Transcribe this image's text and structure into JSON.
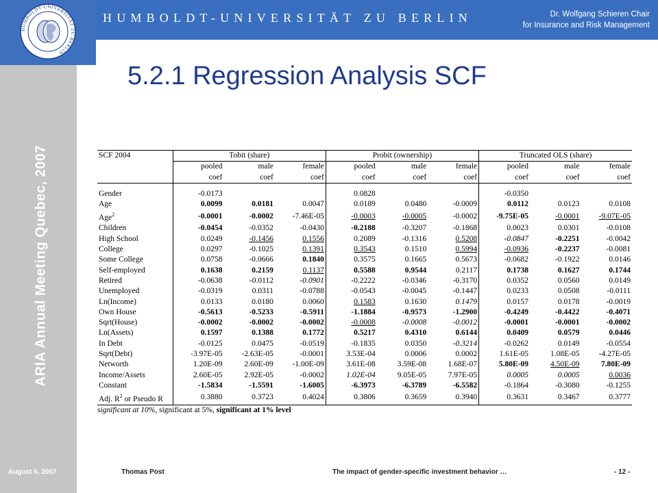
{
  "header": {
    "university": "HUMBOLDT-UNIVERSITÄT ZU BERLIN",
    "chair_line1": "Dr. Wolfgang Schieren Chair",
    "chair_line2": "for Insurance and Risk Management",
    "seal_text": "HUMBOLDT-UNIVERSITÄT ZU BERLIN"
  },
  "sidebar": {
    "conference": "ARIA Annual Meeting Quebec, 2007"
  },
  "slide": {
    "title": "5.2.1 Regression Analysis SCF"
  },
  "table": {
    "corner": "SCF 2004",
    "groups": [
      "Tobit (share)",
      "Probit (ownership)",
      "Truncated OLS (share)"
    ],
    "subheaders": [
      "pooled",
      "male",
      "female",
      "pooled",
      "male",
      "female",
      "pooled",
      "male",
      "female"
    ],
    "coef_label": "coef",
    "rows": [
      {
        "label": "Gender",
        "cells": [
          "-0.0173",
          "",
          "",
          "0.0828",
          "",
          "",
          "-0.0350",
          "",
          ""
        ],
        "styles": [
          "",
          "",
          "",
          "",
          "",
          "",
          "",
          "",
          ""
        ]
      },
      {
        "label": "Age",
        "cells": [
          "0.0099",
          "0.0181",
          "0.0047",
          "0.0189",
          "0.0480",
          "-0.0009",
          "0.0112",
          "0.0123",
          "0.0108"
        ],
        "styles": [
          "b",
          "b",
          "",
          "",
          "",
          "",
          "b",
          "",
          ""
        ]
      },
      {
        "label": "Age2",
        "cells": [
          "-0.0001",
          "-0.0002",
          "-7.46E-05",
          "-0.0003",
          "-0.0005",
          "-0.0002",
          "-9.75E-05",
          "-0.0001",
          "-9.07E-05"
        ],
        "styles": [
          "b",
          "b",
          "",
          "u",
          "u",
          "",
          "b",
          "u",
          "u"
        ]
      },
      {
        "label": "Children",
        "cells": [
          "-0.0454",
          "-0.0352",
          "-0.0430",
          "-0.2188",
          "-0.3207",
          "-0.1868",
          "0.0023",
          "0.0301",
          "-0.0108"
        ],
        "styles": [
          "b",
          "",
          "",
          "b",
          "",
          "",
          "",
          "",
          ""
        ]
      },
      {
        "label": "High School",
        "cells": [
          "0.0249",
          "-0.1456",
          "0.1556",
          "0.2089",
          "-0.1316",
          "0.5208",
          "-0.0847",
          "-0.2251",
          "-0.0042"
        ],
        "styles": [
          "",
          "u",
          "u",
          "",
          "",
          "u",
          "i",
          "b",
          ""
        ]
      },
      {
        "label": "College",
        "cells": [
          "0.0297",
          "-0.1025",
          "0.1391",
          "0.3543",
          "0.1510",
          "0.5994",
          "-0.0936",
          "-0.2237",
          "-0.0081"
        ],
        "styles": [
          "",
          "",
          "u",
          "u",
          "",
          "u",
          "u",
          "b",
          ""
        ]
      },
      {
        "label": "Some College",
        "cells": [
          "0.0758",
          "-0.0666",
          "0.1840",
          "0.3575",
          "0.1665",
          "0.5673",
          "-0.0682",
          "-0.1922",
          "0.0146"
        ],
        "styles": [
          "",
          "",
          "b",
          "",
          "",
          "",
          "",
          "",
          ""
        ]
      },
      {
        "label": "Self-employed",
        "cells": [
          "0.1638",
          "0.2159",
          "0.1137",
          "0.5588",
          "0.9544",
          "0.2117",
          "0.1738",
          "0.1627",
          "0.1744"
        ],
        "styles": [
          "b",
          "b",
          "u",
          "b",
          "b",
          "",
          "b",
          "b",
          "b"
        ]
      },
      {
        "label": "Retired",
        "cells": [
          "-0.0638",
          "-0.0112",
          "-0.0901",
          "-0.2222",
          "-0.0346",
          "-0.3170",
          "0.0352",
          "0.0560",
          "0.0149"
        ],
        "styles": [
          "",
          "",
          "i",
          "",
          "",
          "",
          "",
          "",
          ""
        ]
      },
      {
        "label": "Unemployed",
        "cells": [
          "-0.0319",
          "0.0311",
          "-0.0788",
          "-0.0543",
          "-0.0045",
          "-0.1447",
          "0.0233",
          "0.0508",
          "-0.0111"
        ],
        "styles": [
          "",
          "",
          "",
          "",
          "",
          "",
          "",
          "",
          ""
        ]
      },
      {
        "label": "Ln(Income)",
        "cells": [
          "0.0133",
          "0.0180",
          "0.0060",
          "0.1583",
          "0.1630",
          "0.1479",
          "0.0157",
          "0.0178",
          "-0.0019"
        ],
        "styles": [
          "",
          "",
          "",
          "u",
          "",
          "i",
          "",
          "",
          ""
        ]
      },
      {
        "label": "Own House",
        "cells": [
          "-0.5613",
          "-0.5233",
          "-0.5911",
          "-1.1884",
          "-0.9573",
          "-1.2900",
          "-0.4249",
          "-0.4422",
          "-0.4071"
        ],
        "styles": [
          "b",
          "b",
          "b",
          "b",
          "b",
          "b",
          "b",
          "b",
          "b"
        ]
      },
      {
        "label": "Sqrt(House)",
        "cells": [
          "-0.0002",
          "-0.0002",
          "-0.0002",
          "-0.0008",
          "-0.0008",
          "-0.0012",
          "-0.0001",
          "-0.0001",
          "-0.0002"
        ],
        "styles": [
          "b",
          "b",
          "b",
          "u",
          "i",
          "i",
          "b",
          "b",
          "b"
        ]
      },
      {
        "label": "Ln(Assets)",
        "cells": [
          "0.1597",
          "0.1388",
          "0.1772",
          "0.5217",
          "0.4310",
          "0.6144",
          "0.0409",
          "0.0579",
          "0.0446"
        ],
        "styles": [
          "b",
          "b",
          "b",
          "b",
          "b",
          "b",
          "b",
          "b",
          "b"
        ]
      },
      {
        "label": "In Debt",
        "cells": [
          "-0.0125",
          "0.0475",
          "-0.0519",
          "-0.1835",
          "0.0350",
          "-0.3214",
          "-0.0262",
          "0.0149",
          "-0.0554"
        ],
        "styles": [
          "",
          "",
          "",
          "",
          "",
          "i",
          "",
          "",
          ""
        ]
      },
      {
        "label": "Sqrt(Debt)",
        "cells": [
          "-3.97E-05",
          "-2.63E-05",
          "-0.0001",
          "3.53E-04",
          "0.0006",
          "0.0002",
          "1.61E-05",
          "1.08E-05",
          "-4.27E-05"
        ],
        "styles": [
          "",
          "",
          "",
          "",
          "",
          "",
          "",
          "",
          ""
        ]
      },
      {
        "label": "Networth",
        "cells": [
          "1.20E-09",
          "2.60E-09",
          "-1.00E-09",
          "3.61E-08",
          "3.59E-08",
          "1.68E-07",
          "5.80E-09",
          "4.50E-09",
          "7.80E-09"
        ],
        "styles": [
          "",
          "",
          "",
          "",
          "",
          "",
          "b",
          "u",
          "b"
        ]
      },
      {
        "label": "Income/Assets",
        "cells": [
          "2.60E-05",
          "2.92E-05",
          "-0.0002",
          "1.02E-04",
          "9.05E-05",
          "7.97E-05",
          "0.0005",
          "0.0005",
          "0.0036"
        ],
        "styles": [
          "",
          "",
          "",
          "i",
          "",
          "",
          "i",
          "i",
          "u"
        ]
      },
      {
        "label": "Constant",
        "cells": [
          "-1.5834",
          "-1.5591",
          "-1.6005",
          "-6.3973",
          "-6.3789",
          "-6.5582",
          "-0.1864",
          "-0.3080",
          "-0.1255"
        ],
        "styles": [
          "b",
          "b",
          "b",
          "b",
          "b",
          "b",
          "",
          "",
          ""
        ]
      },
      {
        "label": "Adj. R2 or Pseudo R",
        "cells": [
          "0.3880",
          "0.3723",
          "0.4024",
          "0.3806",
          "0.3659",
          "0.3940",
          "0.3631",
          "0.3467",
          "0.3777"
        ],
        "styles": [
          "",
          "",
          "",
          "",
          "",
          "",
          "",
          "",
          ""
        ]
      }
    ],
    "legend": {
      "part1": "significant at 10%",
      "part2": ", significant at 5%, ",
      "part3": "significant at 1% level"
    }
  },
  "footer": {
    "date": "August 6, 2007",
    "author": "Thomas Post",
    "topic": "The impact of gender-specific investment behavior …",
    "page": "- 12 -"
  }
}
